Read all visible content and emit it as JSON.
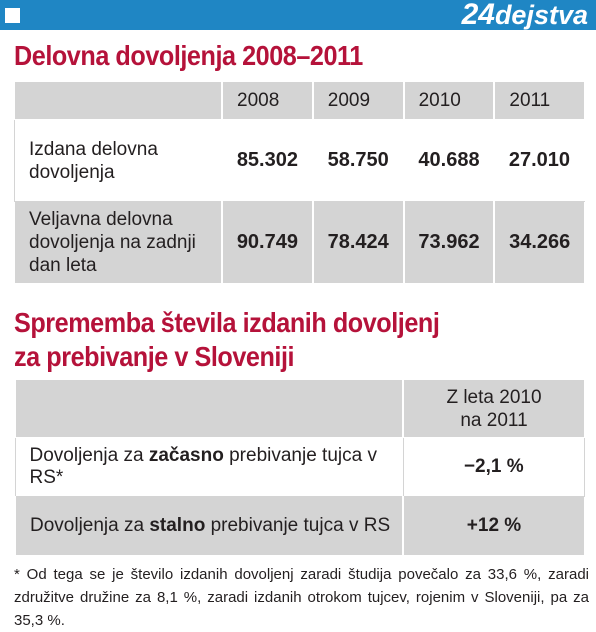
{
  "brand": {
    "num": "24",
    "word": "dejstva"
  },
  "table1": {
    "title": "Delovna dovoljenja 2008–2011",
    "years": [
      "2008",
      "2009",
      "2010",
      "2011"
    ],
    "rows": [
      {
        "label_l1": "Izdana delovna",
        "label_l2": "dovoljenja",
        "label_l3": "",
        "values": [
          "85.302",
          "58.750",
          "40.688",
          "27.010"
        ]
      },
      {
        "label_l1": "Veljavna delovna",
        "label_l2": "dovoljenja na zadnji",
        "label_l3": "dan leta",
        "values": [
          "90.749",
          "78.424",
          "73.962",
          "34.266"
        ]
      }
    ]
  },
  "table2": {
    "title_l1": "Sprememba števila izdanih dovoljenj",
    "title_l2": "za prebivanje v Sloveniji",
    "col_l1": "Z leta 2010",
    "col_l2": "na 2011",
    "rows": [
      {
        "pre": "Dovoljenja za ",
        "bold": "začasno",
        "post": " prebivanje tujca v RS*",
        "value": "−2,1 %"
      },
      {
        "pre": "Dovoljenja za ",
        "bold": "stalno",
        "post": " prebivanje tujca v RS",
        "value": "+12 %"
      }
    ]
  },
  "footnote": "* Od tega se je število izdanih dovoljenj zaradi študija povečalo za 33,6 %, zaradi združitve družine za 8,1 %, zaradi izdanih otrokom tujcev, rojenim v Sloveniji, pa za 35,3 %."
}
